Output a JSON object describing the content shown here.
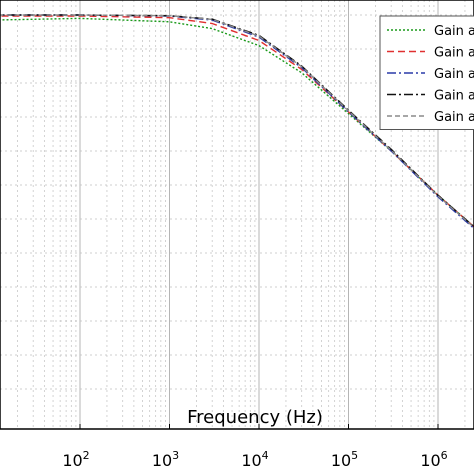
{
  "chart_data": {
    "type": "line",
    "xlabel": "Frequency (Hz)",
    "ylabel": "",
    "title": "",
    "x_scale": "log",
    "xlim": [
      10,
      3000000
    ],
    "ylim": [
      -100,
      5
    ],
    "x_ticks": [
      {
        "value": 100,
        "base": "10",
        "exp": "2"
      },
      {
        "value": 1000,
        "base": "10",
        "exp": "3"
      },
      {
        "value": 10000,
        "base": "10",
        "exp": "4"
      },
      {
        "value": 100000,
        "base": "10",
        "exp": "5"
      },
      {
        "value": 1000000,
        "base": "10",
        "exp": "6"
      }
    ],
    "grid": true,
    "legend_position": "top-right",
    "series": [
      {
        "name": "Gain a",
        "color": "#1a9a1a",
        "dash": "2,2",
        "x": [
          10,
          100,
          1000,
          3000,
          10000,
          30000,
          100000,
          300000,
          1000000,
          3000000
        ],
        "y": [
          -1.5,
          -1.0,
          -2.0,
          -4.0,
          -9.0,
          -17.0,
          -29.0,
          -40.0,
          -53.0,
          -64.0
        ]
      },
      {
        "name": "Gain a",
        "color": "#e03030",
        "dash": "7,4",
        "x": [
          10,
          100,
          1000,
          3000,
          10000,
          30000,
          100000,
          300000,
          1000000,
          3000000
        ],
        "y": [
          -0.3,
          -0.3,
          -0.8,
          -2.5,
          -7.5,
          -16.0,
          -28.5,
          -40.0,
          -53.0,
          -64.0
        ]
      },
      {
        "name": "Gain a",
        "color": "#2a3aa8",
        "dash": "9,3,2,3",
        "x": [
          10,
          100,
          1000,
          3000,
          10000,
          30000,
          100000,
          300000,
          1000000,
          3000000
        ],
        "y": [
          0.0,
          0.0,
          -0.3,
          -1.5,
          -6.5,
          -15.5,
          -28.5,
          -40.0,
          -53.5,
          -64.5
        ]
      },
      {
        "name": "Gain a",
        "color": "#111111",
        "dash": "9,3,2,3",
        "x": [
          10,
          100,
          1000,
          3000,
          10000,
          30000,
          100000,
          300000,
          1000000,
          3000000
        ],
        "y": [
          0.0,
          0.0,
          -0.2,
          -1.2,
          -6.0,
          -15.0,
          -28.0,
          -39.5,
          -53.0,
          -64.0
        ]
      },
      {
        "name": "Gain a",
        "color": "#8a8a8a",
        "dash": "5,3",
        "x": [
          10,
          100,
          1000,
          3000,
          10000,
          30000,
          100000,
          300000,
          1000000,
          3000000
        ],
        "y": [
          0.0,
          0.0,
          -0.2,
          -1.3,
          -6.2,
          -15.2,
          -28.2,
          -39.8,
          -53.2,
          -64.2
        ]
      }
    ]
  }
}
